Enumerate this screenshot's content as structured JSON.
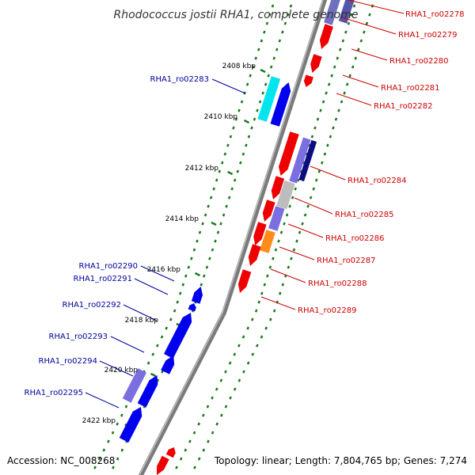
{
  "title": "Rhodococcus jostii RHA1, complete genome",
  "footer": {
    "accession": "Accession: NC_008268",
    "topology": "Topology: linear; Length: 7,804,765 bp; Genes: 7,274"
  },
  "colors": {
    "backbone": "#8a8a8a",
    "ticks": "#1a7a1a",
    "right_labels": "#cc0000",
    "left_labels": "#00009c"
  },
  "scale_labels": [
    "2408 kbp",
    "2410 kbp",
    "2412 kbp",
    "2414 kbp",
    "2416 kbp",
    "2418 kbp",
    "2420 kbp",
    "2422 kbp"
  ],
  "right_genes": [
    "RHA1_ro02278",
    "RHA1_ro02279",
    "RHA1_ro02280",
    "RHA1_ro02281",
    "RHA1_ro02282",
    "RHA1_ro02284",
    "RHA1_ro02285",
    "RHA1_ro02286",
    "RHA1_ro02287",
    "RHA1_ro02288",
    "RHA1_ro02289"
  ],
  "left_genes": [
    "RHA1_ro02283",
    "RHA1_ro02290",
    "RHA1_ro02291",
    "RHA1_ro02292",
    "RHA1_ro02293",
    "RHA1_ro02294",
    "RHA1_ro02295"
  ]
}
